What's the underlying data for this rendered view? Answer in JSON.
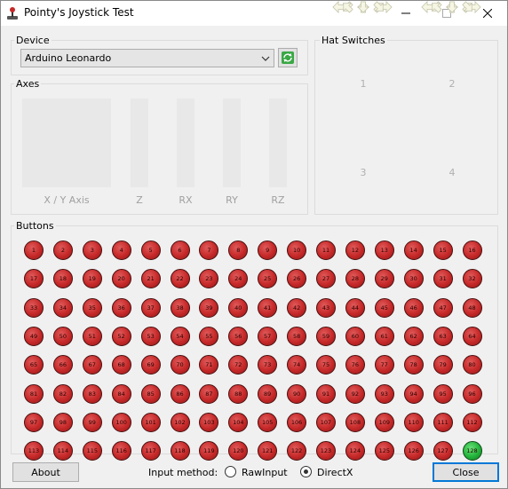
{
  "window": {
    "title": "Pointy's Joystick Test"
  },
  "device": {
    "group_label": "Device",
    "selected": "Arduino Leonardo"
  },
  "axes": {
    "group_label": "Axes",
    "labels": [
      "X / Y Axis",
      "Z",
      "RX",
      "RY",
      "RZ"
    ]
  },
  "hats": {
    "group_label": "Hat Switches",
    "numbers": [
      "1",
      "2",
      "3",
      "4"
    ]
  },
  "buttons": {
    "group_label": "Buttons",
    "count": 128,
    "pressed": [
      128
    ],
    "labels": [
      "1",
      "2",
      "3",
      "4",
      "5",
      "6",
      "7",
      "8",
      "9",
      "10",
      "11",
      "12",
      "13",
      "14",
      "15",
      "16",
      "17",
      "18",
      "19",
      "20",
      "21",
      "22",
      "23",
      "24",
      "25",
      "26",
      "27",
      "28",
      "29",
      "30",
      "31",
      "32",
      "33",
      "34",
      "35",
      "36",
      "37",
      "38",
      "39",
      "40",
      "41",
      "42",
      "43",
      "44",
      "45",
      "46",
      "47",
      "48",
      "49",
      "50",
      "51",
      "52",
      "53",
      "54",
      "55",
      "56",
      "57",
      "58",
      "59",
      "60",
      "61",
      "62",
      "63",
      "64",
      "65",
      "66",
      "67",
      "68",
      "69",
      "70",
      "71",
      "72",
      "73",
      "74",
      "75",
      "76",
      "77",
      "78",
      "79",
      "80",
      "81",
      "82",
      "83",
      "84",
      "85",
      "86",
      "87",
      "88",
      "89",
      "90",
      "91",
      "92",
      "93",
      "94",
      "95",
      "96",
      "97",
      "98",
      "99",
      "100",
      "101",
      "102",
      "103",
      "104",
      "105",
      "106",
      "107",
      "108",
      "109",
      "110",
      "111",
      "112",
      "113",
      "114",
      "115",
      "116",
      "117",
      "118",
      "119",
      "120",
      "121",
      "122",
      "123",
      "124",
      "125",
      "126",
      "127",
      "128"
    ]
  },
  "footer": {
    "about_label": "About",
    "input_method_label": "Input method:",
    "options": [
      "RawInput",
      "DirectX"
    ],
    "selected": "DirectX",
    "close_label": "Close"
  },
  "colors": {
    "button_off": "#c62828",
    "button_on": "#22b43a",
    "accent": "#0078d7"
  },
  "icons": {
    "app": "joystick-icon",
    "refresh": "refresh-icon",
    "hat_arrows": "arrow-icons"
  }
}
